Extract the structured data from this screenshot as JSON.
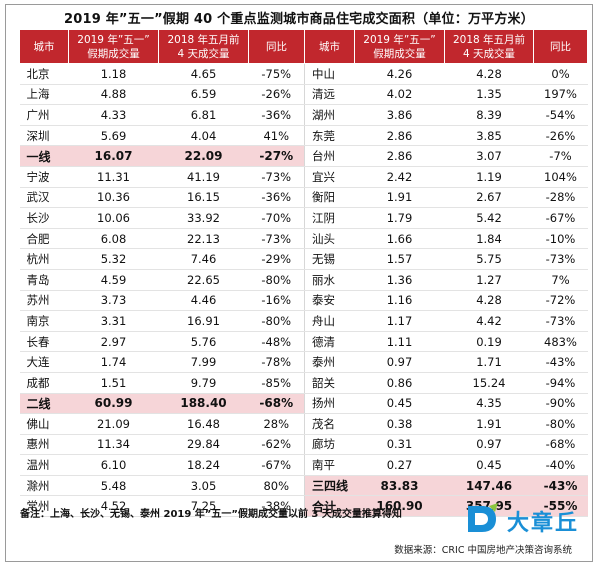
{
  "title": "2019 年”五一”假期 40 个重点监测城市商品住宅成交面积（单位：万平方米）",
  "headers": [
    "城市",
    "2019 年”五一”\n假期成交量",
    "2018 年五月前\n4 天成交量",
    "同比",
    "城市",
    "2019 年”五一”\n假期成交量",
    "2018 年五月前\n4 天成交量",
    "同比"
  ],
  "left_rows": [
    [
      "北京",
      "1.18",
      "4.65",
      "-75%"
    ],
    [
      "上海",
      "4.88",
      "6.59",
      "-26%"
    ],
    [
      "广州",
      "4.33",
      "6.81",
      "-36%"
    ],
    [
      "深圳",
      "5.69",
      "4.04",
      "41%"
    ],
    [
      "一线",
      "16.07",
      "22.09",
      "-27%"
    ],
    [
      "宁波",
      "11.31",
      "41.19",
      "-73%"
    ],
    [
      "武汉",
      "10.36",
      "16.15",
      "-36%"
    ],
    [
      "长沙",
      "10.06",
      "33.92",
      "-70%"
    ],
    [
      "合肥",
      "6.08",
      "22.13",
      "-73%"
    ],
    [
      "杭州",
      "5.32",
      "7.46",
      "-29%"
    ],
    [
      "青岛",
      "4.59",
      "22.65",
      "-80%"
    ],
    [
      "苏州",
      "3.73",
      "4.46",
      "-16%"
    ],
    [
      "南京",
      "3.31",
      "16.91",
      "-80%"
    ],
    [
      "长春",
      "2.97",
      "5.76",
      "-48%"
    ],
    [
      "大连",
      "1.74",
      "7.99",
      "-78%"
    ],
    [
      "成都",
      "1.51",
      "9.79",
      "-85%"
    ],
    [
      "二线",
      "60.99",
      "188.40",
      "-68%"
    ],
    [
      "佛山",
      "21.09",
      "16.48",
      "28%"
    ],
    [
      "惠州",
      "11.34",
      "29.84",
      "-62%"
    ],
    [
      "温州",
      "6.10",
      "18.24",
      "-67%"
    ],
    [
      "滁州",
      "5.48",
      "3.05",
      "80%"
    ],
    [
      "常州",
      "4.52",
      "7.25",
      "-38%"
    ]
  ],
  "right_rows": [
    [
      "中山",
      "4.26",
      "4.28",
      "0%"
    ],
    [
      "清远",
      "4.02",
      "1.35",
      "197%"
    ],
    [
      "湖州",
      "3.86",
      "8.39",
      "-54%"
    ],
    [
      "东莞",
      "2.86",
      "3.85",
      "-26%"
    ],
    [
      "台州",
      "2.86",
      "3.07",
      "-7%"
    ],
    [
      "宜兴",
      "2.42",
      "1.19",
      "104%"
    ],
    [
      "衡阳",
      "1.91",
      "2.67",
      "-28%"
    ],
    [
      "江阴",
      "1.79",
      "5.42",
      "-67%"
    ],
    [
      "汕头",
      "1.66",
      "1.84",
      "-10%"
    ],
    [
      "无锡",
      "1.57",
      "5.75",
      "-73%"
    ],
    [
      "丽水",
      "1.36",
      "1.27",
      "7%"
    ],
    [
      "泰安",
      "1.16",
      "4.28",
      "-72%"
    ],
    [
      "舟山",
      "1.17",
      "4.42",
      "-73%"
    ],
    [
      "德清",
      "1.11",
      "0.19",
      "483%"
    ],
    [
      "泰州",
      "0.97",
      "1.71",
      "-43%"
    ],
    [
      "韶关",
      "0.86",
      "15.24",
      "-94%"
    ],
    [
      "扬州",
      "0.45",
      "4.35",
      "-90%"
    ],
    [
      "茂名",
      "0.38",
      "1.91",
      "-80%"
    ],
    [
      "廊坊",
      "0.31",
      "0.97",
      "-68%"
    ],
    [
      "南平",
      "0.27",
      "0.45",
      "-40%"
    ],
    [
      "三四线",
      "83.83",
      "147.46",
      "-43%"
    ],
    [
      "合计",
      "160.90",
      "357.95",
      "-55%"
    ]
  ],
  "highlight_left": [
    4,
    16
  ],
  "highlight_right": [
    20,
    21
  ],
  "note": "备注：上海、长沙、无锡、泰州 2019 年”五一”假期成交量以前 3 天成交量推算得知",
  "source": "数据来源：CRIC 中国房地产决策咨询系统",
  "logo": {
    "text": "大章丘",
    "icon": "d-logo-icon",
    "color": "#1a8fd6"
  },
  "colors": {
    "header": "#c1272d",
    "highlight": "#f6d5d8"
  }
}
